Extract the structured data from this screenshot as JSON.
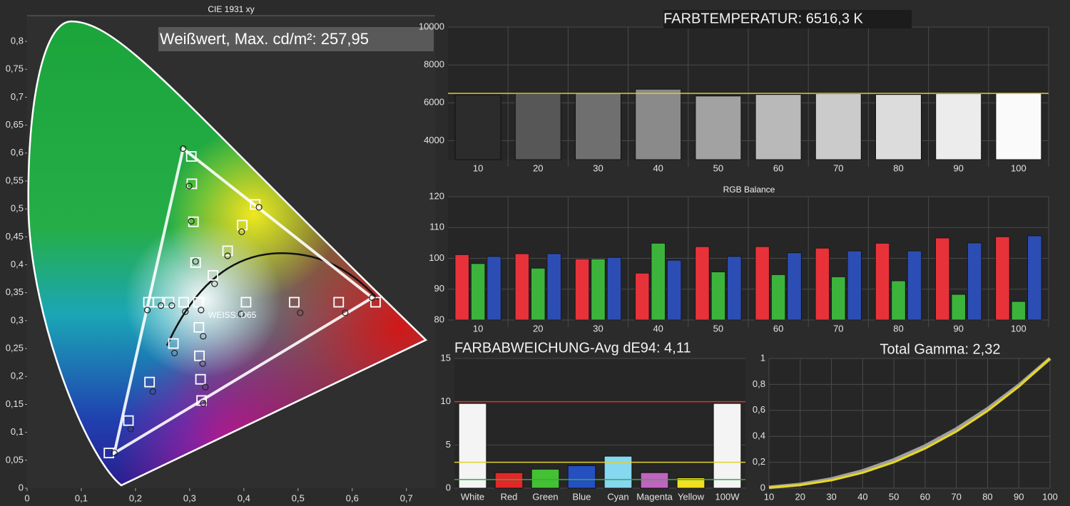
{
  "chart_data": [
    {
      "type": "scatter",
      "title": "CIE 1931 xy",
      "annotations": [
        "Weißwert, Max. cd/m²: 257,95",
        "WEISS: D65"
      ],
      "xlim": [
        0,
        0.753
      ],
      "ylim": [
        0,
        0.846
      ],
      "xticks": [
        0,
        {
          "value": 0.1,
          "label": "0,1"
        },
        {
          "value": 0.2,
          "label": "0,2"
        },
        {
          "value": 0.3,
          "label": "0,3"
        },
        {
          "value": 0.4,
          "label": "0,4"
        },
        {
          "value": 0.5,
          "label": "0,5"
        },
        {
          "value": 0.6,
          "label": "0,6"
        },
        {
          "value": 0.7,
          "label": "0,7"
        }
      ],
      "yticks": [
        0,
        {
          "value": 0.05,
          "label": "0,05"
        },
        {
          "value": 0.1,
          "label": "0,1"
        },
        {
          "value": 0.15,
          "label": "0,15"
        },
        {
          "value": 0.2,
          "label": "0,2"
        },
        {
          "value": 0.25,
          "label": "0,25"
        },
        {
          "value": 0.3,
          "label": "0,3"
        },
        {
          "value": 0.35,
          "label": "0,35"
        },
        {
          "value": 0.4,
          "label": "0,4"
        },
        {
          "value": 0.45,
          "label": "0,45"
        },
        {
          "value": 0.5,
          "label": "0,5"
        },
        {
          "value": 0.55,
          "label": "0,55"
        },
        {
          "value": 0.6,
          "label": "0,6"
        },
        {
          "value": 0.65,
          "label": "0,65"
        },
        {
          "value": 0.7,
          "label": "0,7"
        },
        {
          "value": 0.75,
          "label": "0,75"
        },
        {
          "value": 0.8,
          "label": "0,8"
        }
      ],
      "series": [
        {
          "marker": "square",
          "color": "#ffffff",
          "x": [
            0.303,
            0.304,
            0.307,
            0.311,
            0.343,
            0.37,
            0.397,
            0.421,
            0.643,
            0.575,
            0.493,
            0.404,
            0.316,
            0.289,
            0.262,
            0.242,
            0.224,
            0.27,
            0.317,
            0.318,
            0.32,
            0.322,
            0.226,
            0.187,
            0.151
          ],
          "y": [
            0.594,
            0.545,
            0.477,
            0.404,
            0.381,
            0.425,
            0.471,
            0.508,
            0.333,
            0.333,
            0.333,
            0.333,
            0.333,
            0.333,
            0.333,
            0.333,
            0.333,
            0.259,
            0.288,
            0.237,
            0.195,
            0.157,
            0.19,
            0.121,
            0.063
          ]
        },
        {
          "marker": "circle",
          "color": "#222222",
          "x": [
            0.288,
            0.299,
            0.303,
            0.311,
            0.346,
            0.37,
            0.396,
            0.428,
            0.637,
            0.587,
            0.504,
            0.395,
            0.321,
            0.292,
            0.267,
            0.247,
            0.222,
            0.272,
            0.325,
            0.324,
            0.329,
            0.325,
            0.232,
            0.191,
            0.161
          ],
          "y": [
            0.608,
            0.541,
            0.478,
            0.406,
            0.366,
            0.416,
            0.459,
            0.503,
            0.341,
            0.314,
            0.314,
            0.312,
            0.319,
            0.316,
            0.327,
            0.327,
            0.319,
            0.242,
            0.272,
            0.223,
            0.181,
            0.152,
            0.173,
            0.106,
            0.063
          ]
        }
      ]
    },
    {
      "type": "bar",
      "title": "FARBTEMPERATUR: 6516,3 K",
      "categories": [
        10,
        20,
        30,
        40,
        50,
        60,
        70,
        80,
        90,
        100
      ],
      "values": [
        6420,
        6480,
        6500,
        6720,
        6360,
        6440,
        6480,
        6440,
        6480,
        6510
      ],
      "colors": [
        "#2c2c2c",
        "#575757",
        "#6f6f6f",
        "#8a8a8a",
        "#a2a2a2",
        "#b9b9b9",
        "#cbcbcb",
        "#dcdcdc",
        "#ececec",
        "#fafafa"
      ],
      "reference_lines": [
        {
          "value": 6500,
          "color": "#e0c830"
        }
      ],
      "ylim": [
        3000,
        10000
      ],
      "yticks": [
        4000,
        6000,
        8000,
        10000
      ],
      "grid": true
    },
    {
      "type": "bar",
      "title": "RGB Balance",
      "categories": [
        10,
        20,
        30,
        40,
        50,
        60,
        70,
        80,
        90,
        100
      ],
      "series": [
        {
          "color": "#e8323a",
          "values": [
            101.2,
            101.5,
            99.8,
            95.2,
            103.8,
            103.8,
            103.3,
            104.9,
            106.6,
            107.0
          ]
        },
        {
          "color": "#3cb43c",
          "values": [
            98.3,
            96.8,
            99.8,
            104.9,
            95.6,
            94.7,
            94.0,
            92.7,
            88.3,
            86.0
          ]
        },
        {
          "color": "#2c4eb4",
          "values": [
            100.6,
            101.5,
            100.3,
            99.4,
            100.6,
            101.8,
            102.4,
            102.4,
            105.0,
            107.3
          ]
        }
      ],
      "ylim": [
        80,
        120
      ],
      "yticks": [
        80,
        90,
        100,
        110,
        120
      ],
      "grid": true
    },
    {
      "type": "bar",
      "title": "FARBABWEICHUNG-Avg dE94: 4,11",
      "categories": [
        "White",
        "Red",
        "Green",
        "Blue",
        "Cyan",
        "Magenta",
        "Yellow",
        "100W"
      ],
      "values": [
        9.8,
        1.8,
        2.2,
        2.6,
        3.7,
        1.8,
        1.2,
        9.8
      ],
      "colors": [
        "#f4f4f4",
        "#e02828",
        "#44c034",
        "#2450c0",
        "#86d8f0",
        "#c064c0",
        "#f0e020",
        "#f4f4f4"
      ],
      "reference_lines": [
        {
          "value": 10,
          "color": "#e03030"
        },
        {
          "value": 3,
          "color": "#e0d030"
        },
        {
          "value": 1,
          "color": "#30b040"
        }
      ],
      "ylim": [
        0,
        15
      ],
      "yticks": [
        0,
        5,
        10,
        15
      ],
      "grid": true
    },
    {
      "type": "line",
      "title": "Total Gamma: 2,32",
      "x": [
        10,
        20,
        30,
        40,
        50,
        60,
        70,
        80,
        90,
        100
      ],
      "series": [
        {
          "color": "#a0a0a0",
          "values": [
            0.006,
            0.029,
            0.071,
            0.133,
            0.218,
            0.325,
            0.456,
            0.612,
            0.793,
            1
          ]
        },
        {
          "color": "#e8d820",
          "values": [
            0.005,
            0.024,
            0.061,
            0.119,
            0.2,
            0.306,
            0.437,
            0.596,
            0.783,
            1
          ]
        }
      ],
      "xlim": [
        10,
        100
      ],
      "ylim": [
        0,
        1
      ],
      "xticks": [
        10,
        20,
        30,
        40,
        50,
        60,
        70,
        80,
        90,
        100
      ],
      "yticks": [
        0,
        {
          "value": 0.2,
          "label": "0,2"
        },
        {
          "value": 0.4,
          "label": "0,4"
        },
        {
          "value": 0.6,
          "label": "0,6"
        },
        {
          "value": 0.8,
          "label": "0,8"
        },
        1
      ],
      "grid": true
    }
  ]
}
